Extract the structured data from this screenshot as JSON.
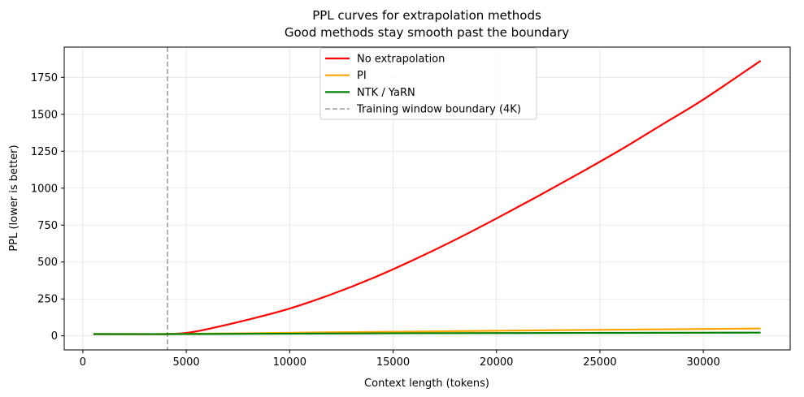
{
  "chart_data": {
    "type": "line",
    "title": "PPL curves for extrapolation methods",
    "subtitle": "Good methods stay smooth past the boundary",
    "xlabel": "Context length (tokens)",
    "ylabel": "PPL (lower is better)",
    "xlim": [
      -900,
      34200
    ],
    "ylim": [
      -95,
      1955
    ],
    "xticks": [
      0,
      5000,
      10000,
      15000,
      20000,
      25000,
      30000
    ],
    "yticks": [
      0,
      250,
      500,
      750,
      1000,
      1250,
      1500,
      1750
    ],
    "grid": true,
    "legend_position": "top-center",
    "series": [
      {
        "name": "No extrapolation",
        "color": "#ff0000",
        "style": "solid",
        "x": [
          512,
          1024,
          2048,
          3072,
          4096,
          5000,
          6000,
          8000,
          10000,
          12000,
          14000,
          16000,
          18000,
          20000,
          22000,
          24000,
          26000,
          28000,
          30000,
          32768
        ],
        "y": [
          12,
          12,
          12,
          12,
          12,
          20,
          45,
          110,
          185,
          280,
          390,
          515,
          650,
          795,
          945,
          1100,
          1260,
          1430,
          1600,
          1862
        ]
      },
      {
        "name": "PI",
        "color": "#ffa500",
        "style": "solid",
        "x": [
          512,
          4096,
          8000,
          12000,
          16000,
          20000,
          24000,
          28000,
          32768
        ],
        "y": [
          12,
          12,
          18,
          24,
          29,
          35,
          40,
          44,
          50
        ]
      },
      {
        "name": "NTK / YaRN",
        "color": "#008000",
        "style": "solid",
        "x": [
          512,
          4096,
          8000,
          12000,
          16000,
          20000,
          24000,
          28000,
          32768
        ],
        "y": [
          12,
          12,
          14,
          16,
          18,
          19,
          20,
          21,
          22
        ]
      }
    ],
    "reference_lines": [
      {
        "name": "Training window boundary (4K)",
        "x": 4096,
        "color": "#999999",
        "style": "dashed"
      }
    ]
  }
}
